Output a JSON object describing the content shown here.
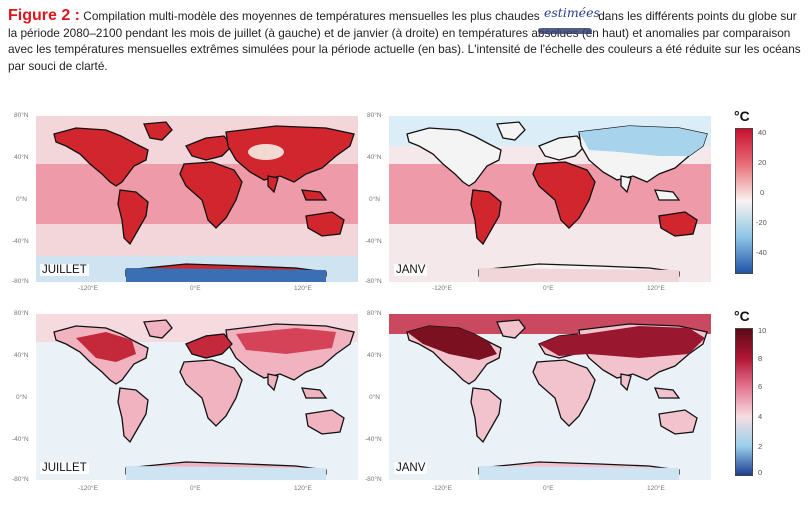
{
  "caption": {
    "figure_label": "Figure 2 :",
    "text_line1": " Compilation multi-modèle des moyennes de températures mensuelles les plus chaudes ",
    "handwritten": "estimées",
    "text_line1_end": " dans les différents points du globe sur",
    "text_rest": "la période 2080–2100 pendant les mois de juillet (à gauche) et de janvier (à droite) en températures absolues (en haut) et anomalies par comparaison avec les températures mensuelles extrêmes simulées pour la période actuelle (en bas). L'intensité de l'échelle des couleurs a été réduite sur les océans par souci de clarté."
  },
  "maps": {
    "top_left_label": "JUILLET",
    "top_right_label": "JANV",
    "bottom_left_label": "JUILLET",
    "bottom_right_label": "JANV",
    "lat_ticks": [
      "80°N",
      "40°N",
      "0°N",
      "-40°N",
      "-80°N"
    ],
    "lon_ticks": [
      "-120°E",
      "0°E",
      "120°E"
    ]
  },
  "colorbar_top": {
    "unit": "°C",
    "ticks": [
      "40",
      "20",
      "0",
      "-20",
      "-40"
    ],
    "colors": [
      "#c8102e",
      "#e8707a",
      "#f8f3f0",
      "#8ec5e6",
      "#1f55a8"
    ]
  },
  "colorbar_bottom": {
    "unit": "°C",
    "ticks": [
      "10",
      "8",
      "6",
      "4",
      "2",
      "0"
    ],
    "colors": [
      "#5a0a15",
      "#b01535",
      "#e57790",
      "#f6dce2",
      "#9ad1ea",
      "#1f3f95"
    ]
  }
}
